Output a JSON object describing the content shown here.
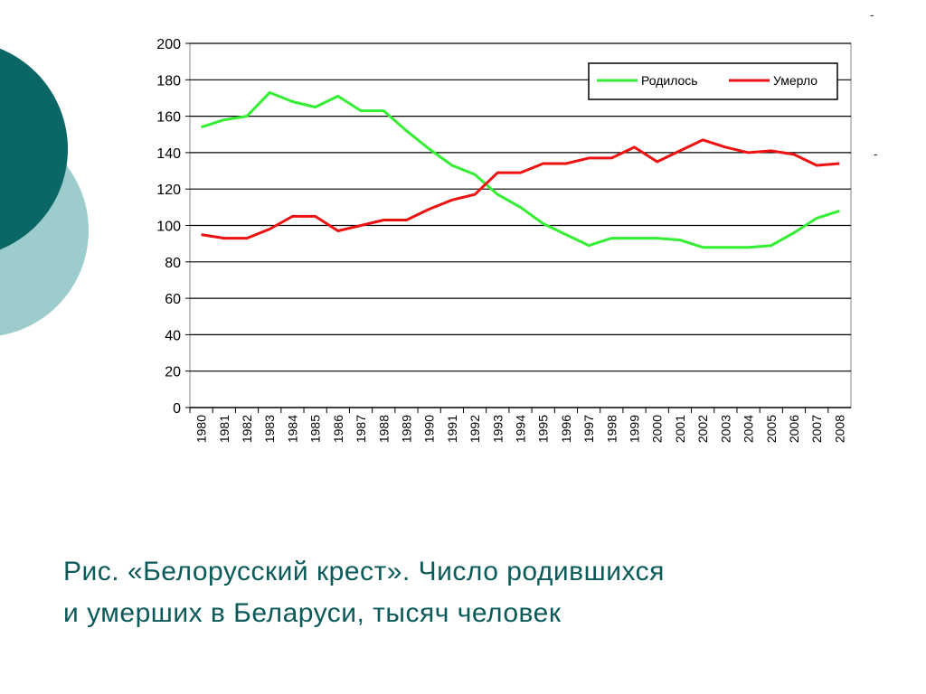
{
  "decor": {
    "dark_circle_color": "#0b6666",
    "light_circle_color": "#9ccccc",
    "marks": [
      "-",
      "-"
    ]
  },
  "caption": {
    "line1": "Рис. «Белорусский крест». Число родившихся",
    "line2": "и умерших в Беларуси, тысяч человек",
    "color": "#0b5a5a"
  },
  "chart_data": {
    "type": "line",
    "title": "",
    "xlabel": "",
    "ylabel": "",
    "ylim": [
      0,
      200
    ],
    "yticks": [
      "0",
      "20",
      "40",
      "60",
      "80",
      "100",
      "120",
      "140",
      "160",
      "180",
      "200"
    ],
    "grid": true,
    "legend_position": "top-right",
    "x": [
      "1980",
      "1981",
      "1982",
      "1983",
      "1984",
      "1985",
      "1986",
      "1987",
      "1988",
      "1989",
      "1990",
      "1991",
      "1992",
      "1993",
      "1994",
      "1995",
      "1996",
      "1997",
      "1998",
      "1999",
      "2000",
      "2001",
      "2002",
      "2003",
      "2004",
      "2005",
      "2006",
      "2007",
      "2008"
    ],
    "series": [
      {
        "name": "Родилось",
        "color": "#33ee33",
        "values": [
          154,
          158,
          160,
          173,
          168,
          165,
          171,
          163,
          163,
          152,
          142,
          133,
          128,
          117,
          110,
          101,
          95,
          89,
          93,
          93,
          93,
          92,
          88,
          88,
          88,
          89,
          96,
          104,
          108
        ]
      },
      {
        "name": "Умерло",
        "color": "#ee1111",
        "values": [
          95,
          93,
          93,
          98,
          105,
          105,
          97,
          100,
          103,
          103,
          109,
          114,
          117,
          129,
          129,
          134,
          134,
          137,
          137,
          143,
          135,
          141,
          147,
          143,
          140,
          141,
          139,
          133,
          134
        ]
      }
    ]
  }
}
